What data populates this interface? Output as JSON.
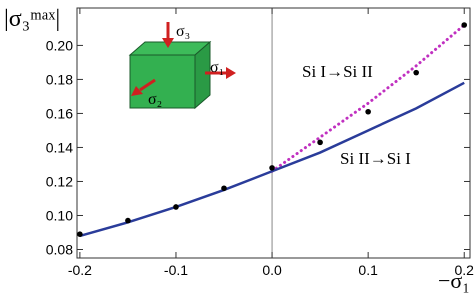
{
  "chart_data": {
    "type": "line",
    "x_label": "−σ₁",
    "y_label": "|σ₃ᵐᵃˣ|",
    "xlim": [
      -0.203,
      0.206
    ],
    "ylim": [
      0.075,
      0.222
    ],
    "xticks": [
      -0.2,
      -0.1,
      {
        "value": 0,
        "label": "0.0"
      },
      0.1,
      0.2
    ],
    "yticks": [
      0.08,
      {
        "value": 0.1,
        "label": "0.10"
      },
      0.12,
      0.14,
      0.16,
      0.18,
      {
        "value": 0.2,
        "label": "0.20"
      }
    ],
    "vline": 0,
    "inset_labels": [
      "σ₃",
      "σ₁",
      "σ₂"
    ],
    "series": [
      {
        "name": "Si I→Si II",
        "color": "#c030c0",
        "style": "dotted",
        "x": [
          0,
          0.05,
          0.1,
          0.15,
          0.2
        ],
        "values": [
          0.126,
          0.146,
          0.166,
          0.188,
          0.212
        ]
      },
      {
        "name": "Si II→Si I",
        "color": "#2a3c9a",
        "style": "solid",
        "x": [
          -0.2,
          -0.15,
          -0.1,
          -0.05,
          0,
          0.05,
          0.1,
          0.15,
          0.2
        ],
        "values": [
          0.088,
          0.096,
          0.105,
          0.115,
          0.126,
          0.137,
          0.15,
          0.163,
          0.178
        ]
      },
      {
        "color": "#000000",
        "style": "markers",
        "x": [
          -0.2,
          -0.15,
          -0.1,
          -0.05,
          0,
          0.05,
          0.1,
          0.15,
          0.2
        ],
        "values": [
          0.089,
          0.097,
          0.105,
          0.116,
          0.128,
          0.143,
          0.161,
          0.184,
          0.212
        ]
      }
    ]
  }
}
